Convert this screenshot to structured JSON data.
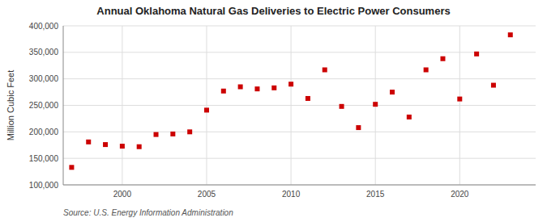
{
  "chart_data": {
    "type": "scatter",
    "title": "Annual Oklahoma Natural Gas Deliveries to Electric Power Consumers",
    "ylabel": "Million Cubic Feet",
    "annotation": "Source: U.S. Energy Information Administration",
    "x": [
      1997,
      1998,
      1999,
      2000,
      2001,
      2002,
      2003,
      2004,
      2005,
      2006,
      2007,
      2008,
      2009,
      2010,
      2011,
      2012,
      2013,
      2014,
      2015,
      2016,
      2017,
      2018,
      2019,
      2020,
      2021,
      2022,
      2023
    ],
    "values": [
      133000,
      181000,
      176000,
      173000,
      172000,
      195000,
      196000,
      200000,
      241000,
      277000,
      285000,
      281000,
      283000,
      290000,
      263000,
      317000,
      248000,
      208000,
      252000,
      275000,
      228000,
      317000,
      338000,
      262000,
      347000,
      288000,
      383000
    ],
    "color": "#cc0000",
    "marker": "square",
    "xlim": [
      1996.5,
      2024.5
    ],
    "ylim": [
      100000,
      400000
    ],
    "xticks": [
      2000,
      2005,
      2010,
      2015,
      2020
    ],
    "yticks": [
      {
        "value": 100000,
        "label": "100,000"
      },
      {
        "value": 150000,
        "label": "150,000"
      },
      {
        "value": 200000,
        "label": "200,000"
      },
      {
        "value": 250000,
        "label": "250,000"
      },
      {
        "value": 300000,
        "label": "300,000"
      },
      {
        "value": 350000,
        "label": "350,000"
      },
      {
        "value": 400000,
        "label": "400,000"
      }
    ],
    "grid": true
  }
}
